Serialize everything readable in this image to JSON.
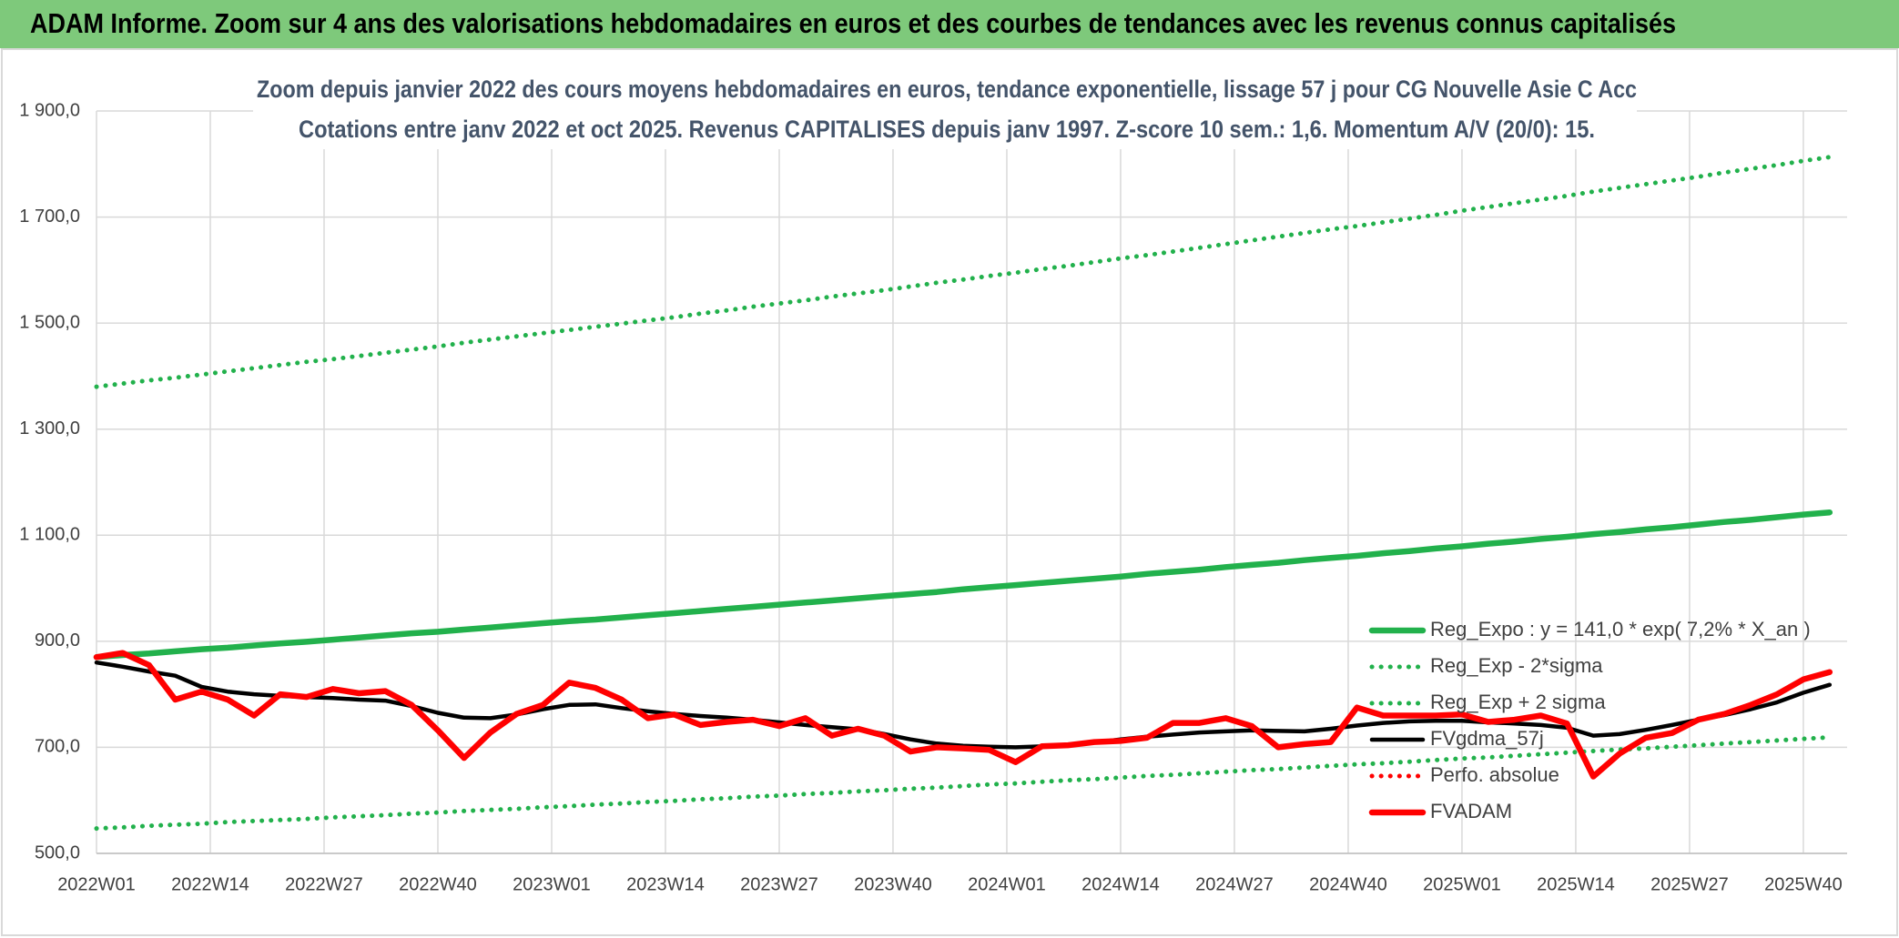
{
  "chart_data": {
    "type": "line",
    "title": "ADAM Informe. Zoom sur 4 ans des valorisations hebdomadaires en euros et des courbes de tendances avec les revenus connus capitalisés",
    "subtitle": [
      "Zoom depuis janvier 2022 des cours moyens hebdomadaires en euros, tendance exponentielle, lissage 57 j pour CG Nouvelle Asie C Acc",
      "Cotations entre janv 2022 et oct 2025. Revenus CAPITALISES depuis janv 1997. Z-score 10 sem.: 1,6. Momentum A/V (20/0): 15."
    ],
    "x": [
      0,
      3,
      6,
      9,
      12,
      15,
      18,
      21,
      24,
      27,
      30,
      33,
      36,
      39,
      42,
      45,
      48,
      51,
      54,
      57,
      60,
      63,
      66,
      69,
      72,
      75,
      78,
      81,
      84,
      87,
      90,
      93,
      96,
      99,
      102,
      105,
      108,
      111,
      114,
      117,
      120,
      123,
      126,
      129,
      132,
      135,
      138,
      141,
      144,
      147,
      150,
      153,
      156,
      159,
      162,
      165,
      168,
      171,
      174,
      177,
      180,
      183,
      186,
      189,
      192,
      195,
      198
    ],
    "xlim": [
      0,
      200
    ],
    "xticks": [
      {
        "value": 0,
        "label": "2022W01"
      },
      {
        "value": 13,
        "label": "2022W14"
      },
      {
        "value": 26,
        "label": "2022W27"
      },
      {
        "value": 39,
        "label": "2022W40"
      },
      {
        "value": 52,
        "label": "2023W01"
      },
      {
        "value": 65,
        "label": "2023W14"
      },
      {
        "value": 78,
        "label": "2023W27"
      },
      {
        "value": 91,
        "label": "2023W40"
      },
      {
        "value": 104,
        "label": "2024W01"
      },
      {
        "value": 117,
        "label": "2024W14"
      },
      {
        "value": 130,
        "label": "2024W27"
      },
      {
        "value": 143,
        "label": "2024W40"
      },
      {
        "value": 156,
        "label": "2025W01"
      },
      {
        "value": 169,
        "label": "2025W14"
      },
      {
        "value": 182,
        "label": "2025W27"
      },
      {
        "value": 195,
        "label": "2025W40"
      }
    ],
    "ylim": [
      500,
      1900
    ],
    "yticks": [
      {
        "value": 500,
        "label": "500,0"
      },
      {
        "value": 700,
        "label": "700,0"
      },
      {
        "value": 900,
        "label": "900,0"
      },
      {
        "value": 1100,
        "label": "1 100,0"
      },
      {
        "value": 1300,
        "label": "1 300,0"
      },
      {
        "value": 1500,
        "label": "1 500,0"
      },
      {
        "value": 1700,
        "label": "1 700,0"
      },
      {
        "value": 1900,
        "label": "1 900,0"
      }
    ],
    "grid": true,
    "legend": "right",
    "series": [
      {
        "name": "Reg_Expo : y = 141,0 * exp( 7,2% *  X_an )",
        "color": "#22b14c",
        "line_style": "solid",
        "values": [
          870,
          874,
          877,
          881,
          885,
          888,
          892,
          896,
          899,
          903,
          907,
          911,
          915,
          918,
          922,
          926,
          930,
          934,
          938,
          941,
          945,
          949,
          953,
          957,
          961,
          965,
          969,
          973,
          977,
          981,
          985,
          989,
          993,
          998,
          1002,
          1006,
          1010,
          1014,
          1018,
          1022,
          1027,
          1031,
          1035,
          1040,
          1044,
          1048,
          1053,
          1057,
          1061,
          1066,
          1070,
          1075,
          1079,
          1084,
          1088,
          1093,
          1097,
          1102,
          1106,
          1111,
          1115,
          1120,
          1125,
          1129,
          1134,
          1139,
          1143
        ]
      },
      {
        "name": "Reg_Exp - 2*sigma",
        "color": "#22b14c",
        "line_style": "dotted",
        "values": [
          547,
          549,
          552,
          554,
          556,
          559,
          561,
          563,
          565,
          568,
          570,
          572,
          575,
          577,
          580,
          582,
          584,
          587,
          589,
          592,
          594,
          597,
          599,
          602,
          604,
          607,
          609,
          612,
          614,
          617,
          619,
          622,
          624,
          627,
          630,
          632,
          635,
          638,
          640,
          643,
          646,
          648,
          651,
          654,
          657,
          659,
          662,
          665,
          668,
          670,
          673,
          676,
          679,
          681,
          684,
          687,
          690,
          693,
          696,
          698,
          701,
          704,
          707,
          710,
          713,
          716,
          719
        ]
      },
      {
        "name": "Reg_Exp + 2 sigma",
        "color": "#22b14c",
        "line_style": "dotted",
        "values": [
          1380,
          1386,
          1392,
          1397,
          1403,
          1409,
          1415,
          1421,
          1427,
          1432,
          1438,
          1444,
          1450,
          1456,
          1463,
          1469,
          1475,
          1481,
          1487,
          1493,
          1499,
          1505,
          1511,
          1518,
          1524,
          1531,
          1537,
          1543,
          1550,
          1556,
          1562,
          1569,
          1576,
          1582,
          1589,
          1595,
          1602,
          1608,
          1615,
          1622,
          1628,
          1635,
          1642,
          1649,
          1656,
          1663,
          1670,
          1677,
          1683,
          1690,
          1697,
          1704,
          1712,
          1719,
          1726,
          1733,
          1740,
          1748,
          1755,
          1762,
          1769,
          1776,
          1784,
          1791,
          1798,
          1806,
          1813
        ]
      },
      {
        "name": "FVgdma_57j",
        "color": "#000000",
        "line_style": "solid",
        "values": [
          860,
          852,
          843,
          835,
          814,
          805,
          800,
          797,
          795,
          793,
          790,
          788,
          778,
          765,
          756,
          755,
          762,
          772,
          780,
          781,
          774,
          768,
          763,
          759,
          756,
          752,
          747,
          742,
          738,
          734,
          725,
          715,
          707,
          703,
          701,
          700,
          702,
          705,
          709,
          715,
          720,
          724,
          728,
          730,
          732,
          731,
          730,
          735,
          741,
          746,
          749,
          750,
          750,
          747,
          745,
          742,
          737,
          722,
          725,
          733,
          742,
          752,
          761,
          772,
          785,
          803,
          818
        ]
      },
      {
        "name": "Perfo. absolue",
        "color": "#ff0000",
        "line_style": "dotted",
        "values": [
          null,
          null,
          null,
          null,
          null,
          null,
          null,
          null,
          null,
          null,
          null,
          null,
          null,
          null,
          null,
          null,
          null,
          null,
          null,
          null,
          null,
          null,
          null,
          null,
          null,
          null,
          null,
          null,
          null,
          null,
          null,
          null,
          null,
          null,
          null,
          null,
          null,
          null,
          null,
          null,
          null,
          null,
          null,
          null,
          null,
          null,
          null,
          null,
          null,
          null,
          null,
          null,
          null,
          null,
          null,
          null,
          null,
          null,
          null,
          null,
          null,
          null,
          null,
          null,
          null,
          null,
          null
        ]
      },
      {
        "name": "FVADAM",
        "color": "#ff0000",
        "line_style": "solid",
        "values": [
          870,
          878,
          855,
          790,
          805,
          790,
          760,
          800,
          795,
          810,
          802,
          806,
          780,
          732,
          680,
          728,
          763,
          780,
          822,
          812,
          790,
          755,
          762,
          742,
          748,
          752,
          740,
          755,
          722,
          735,
          722,
          692,
          700,
          698,
          695,
          672,
          702,
          704,
          710,
          712,
          718,
          746,
          746,
          755,
          740,
          700,
          706,
          710,
          775,
          760,
          760,
          760,
          762,
          748,
          752,
          760,
          745,
          645,
          688,
          718,
          727,
          752,
          763,
          780,
          800,
          828,
          842
        ]
      }
    ]
  }
}
